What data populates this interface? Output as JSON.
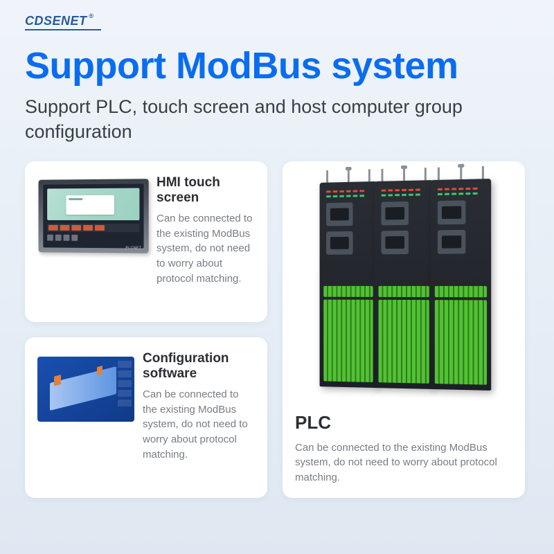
{
  "brand": "CDSENET",
  "headline": "Support ModBus system",
  "subhead": "Support PLC, touch screen and host computer group configuration",
  "cards": {
    "hmi": {
      "title": "HMI touch screen",
      "body": "Can be connected to the existing ModBus system, do not need to worry about protocol matching."
    },
    "cfg": {
      "title": "Configuration software",
      "body": "Can be connected to the existing ModBus system, do not need to worry about protocol matching."
    },
    "plc": {
      "title": "PLC",
      "body": "Can be connected to the existing ModBus system, do not need to worry about protocol matching."
    }
  },
  "colors": {
    "headline": "#0a6df0",
    "subhead": "#3a3f45",
    "body": "#777d85",
    "card_bg": "#ffffff",
    "page_bg_top": "#f0f4fa",
    "page_bg_bot": "#dfe8f2",
    "led_red": "#e24a3a",
    "led_green": "#3ec76a",
    "terminal_green": "#52c234"
  }
}
